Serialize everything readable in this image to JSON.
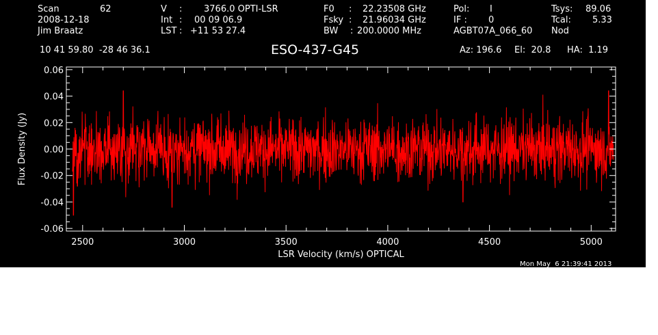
{
  "header": {
    "col1": {
      "scan_label": "Scan",
      "scan_value": "62",
      "date": "2008-12-18",
      "observer": "Jim Braatz"
    },
    "col2": {
      "v_label": "V",
      "v_value": "3766.0 OPTI-LSR",
      "int_label": "Int",
      "int_value": "00 09 06.9",
      "lst_label": "LST",
      "lst_value": "+11 53 27.4"
    },
    "col3": {
      "f0_label": "F0",
      "f0_value": "22.23508 GHz",
      "fsky_label": "Fsky",
      "fsky_value": "21.96034 GHz",
      "bw_label": "BW",
      "bw_value": "200.0000 MHz"
    },
    "col4": {
      "pol_label": "Pol:",
      "pol_value": "I",
      "if_label": "IF :",
      "if_value": "0",
      "project": "AGBT07A_066_60"
    },
    "col5": {
      "tsys_label": "Tsys:",
      "tsys_value": "89.06",
      "tcal_label": "Tcal:",
      "tcal_value": "5.33",
      "mode": "Nod"
    },
    "coords": "10 41 59.80  -28 46 36.1",
    "source": "ESO-437-G45",
    "pointing": {
      "az": "Az: 196.6",
      "el": "El:  20.8",
      "ha": "HA:  1.19"
    }
  },
  "timestamp": "Mon May  6 21:39:41 2013",
  "colors": {
    "background": "#000000",
    "foreground": "#ffffff",
    "trace": "#ff0000"
  },
  "chart_data": {
    "type": "line",
    "xlabel": "LSR Velocity (km/s) OPTICAL",
    "ylabel": "Flux Density (Jy)",
    "xlim": [
      2420,
      5120
    ],
    "ylim": [
      -0.062,
      0.062
    ],
    "xticks": [
      2500,
      3000,
      3500,
      4000,
      4500,
      5000
    ],
    "xtick_labels": [
      "2500",
      "3000",
      "3500",
      "4000",
      "4500",
      "5000"
    ],
    "yticks": [
      -0.06,
      -0.04,
      -0.02,
      0.0,
      0.02,
      0.04,
      0.06
    ],
    "ytick_labels": [
      "-0.06",
      "-0.04",
      "-0.02",
      "0.00",
      "0.02",
      "0.04",
      "0.06"
    ],
    "series": [
      {
        "color": "#ff0000",
        "x_start": 2450,
        "x_end": 5110,
        "noise_rms_jy": 0.012,
        "features": [
          {
            "x": 2455,
            "y": -0.05
          },
          {
            "x": 2475,
            "y": -0.028
          },
          {
            "x": 2700,
            "y": 0.044
          },
          {
            "x": 2940,
            "y": -0.044
          },
          {
            "x": 4370,
            "y": -0.04
          },
          {
            "x": 5085,
            "y": 0.044
          }
        ]
      }
    ]
  }
}
